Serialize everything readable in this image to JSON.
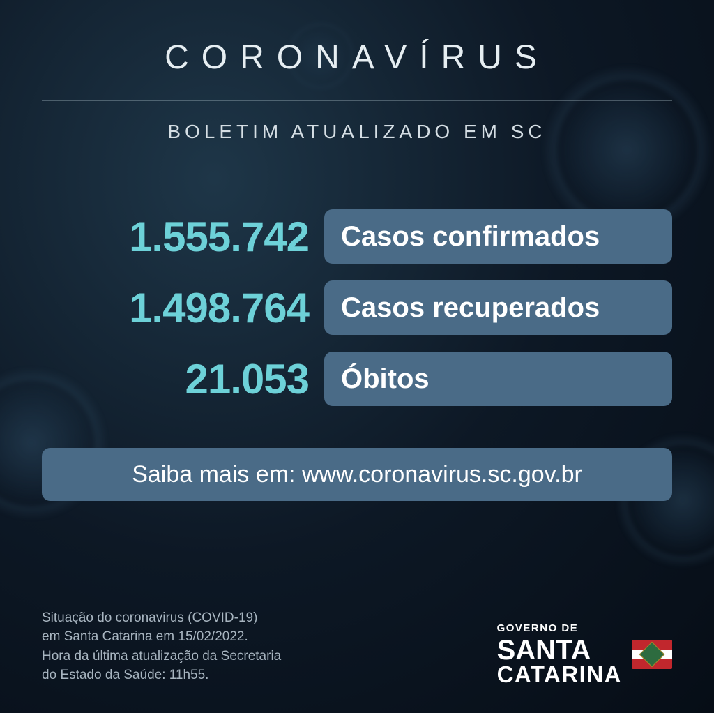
{
  "header": {
    "title": "CORONAVÍRUS",
    "subtitle": "BOLETIM ATUALIZADO EM SC"
  },
  "stats": [
    {
      "value": "1.555.742",
      "label": "Casos confirmados"
    },
    {
      "value": "1.498.764",
      "label": "Casos recuperados"
    },
    {
      "value": "21.053",
      "label": "Óbitos"
    }
  ],
  "link": {
    "prefix": "Saiba mais em: ",
    "url": "www.coronavirus.sc.gov.br"
  },
  "footer": {
    "line1": "Situação do coronavirus (COVID-19)",
    "line2": "em Santa Catarina em 15/02/2022.",
    "line3": "Hora da última atualização da Secretaria",
    "line4": "do Estado da Saúde: 11h55."
  },
  "logo": {
    "governo": "GOVERNO DE",
    "line1": "SANTA",
    "line2": "CATARINA"
  },
  "styling": {
    "background_gradient_from": "#1e3648",
    "background_gradient_mid": "#0d1825",
    "background_gradient_to": "#060d16",
    "title_color": "#e6eef2",
    "title_fontsize": 48,
    "title_letter_spacing": 18,
    "subtitle_color": "#d5dee4",
    "subtitle_fontsize": 28,
    "stat_value_color": "#6dd1d8",
    "stat_value_fontsize": 60,
    "stat_box_bg": "#4a6b87",
    "stat_label_color": "#ffffff",
    "stat_label_fontsize": 40,
    "link_fontsize": 34,
    "footer_text_color": "#a8b5c0",
    "footer_fontsize": 19,
    "divider_color": "rgba(180,200,210,0.35)",
    "box_radius": 12,
    "flag_red": "#c1272d",
    "flag_green": "#2d6b3f"
  }
}
